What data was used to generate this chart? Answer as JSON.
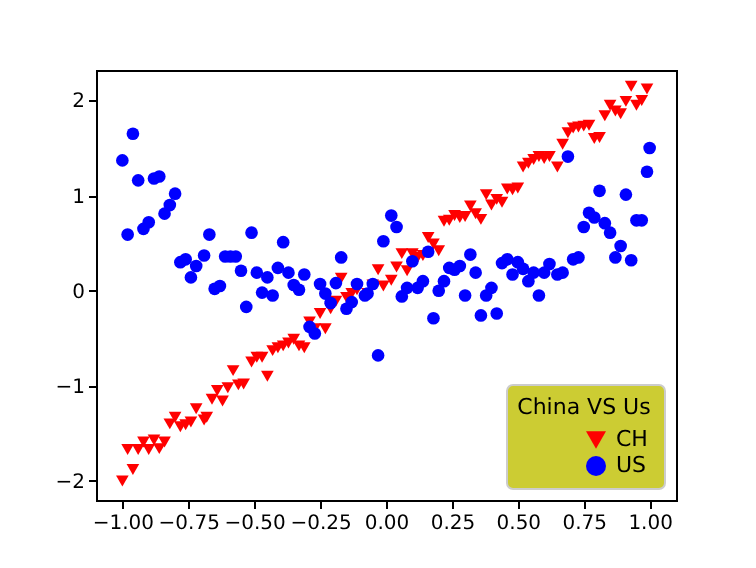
{
  "chart_data": {
    "type": "scatter",
    "legend_title": "China VS Us",
    "legend": "bottom right",
    "grid": false,
    "xlim": [
      -1.1,
      1.1
    ],
    "ylim": [
      -2.2,
      2.32
    ],
    "xticks": [
      {
        "value": -1,
        "label": "−1.00"
      },
      {
        "value": -0.75,
        "label": "−0.75"
      },
      {
        "value": -0.5,
        "label": "−0.50"
      },
      {
        "value": -0.25,
        "label": "−0.25"
      },
      {
        "value": 0,
        "label": "0.00"
      },
      {
        "value": 0.25,
        "label": "0.25"
      },
      {
        "value": 0.5,
        "label": "0.50"
      },
      {
        "value": 0.75,
        "label": "0.75"
      },
      {
        "value": 1,
        "label": "1.00"
      }
    ],
    "yticks": [
      {
        "value": -2,
        "label": "−2"
      },
      {
        "value": -1,
        "label": "−1"
      },
      0,
      1,
      2
    ],
    "series": [
      {
        "name": "CH",
        "color": "#ff0000",
        "marker": "triangle",
        "x": [
          -1.0,
          -0.96,
          -0.98,
          -0.94,
          -0.92,
          -0.9,
          -0.88,
          -0.86,
          -0.84,
          -0.82,
          -0.8,
          -0.78,
          -0.76,
          -0.74,
          -0.72,
          -0.69,
          -0.68,
          -0.66,
          -0.64,
          -0.62,
          -0.6,
          -0.58,
          -0.56,
          -0.54,
          -0.51,
          -0.49,
          -0.47,
          -0.45,
          -0.43,
          -0.41,
          -0.39,
          -0.37,
          -0.35,
          -0.33,
          -0.31,
          -0.29,
          -0.27,
          -0.25,
          -0.23,
          -0.21,
          -0.19,
          -0.17,
          -0.15,
          -0.13,
          -0.11,
          -0.07,
          -0.05,
          -0.03,
          -0.01,
          0.02,
          0.04,
          0.06,
          0.08,
          0.1,
          0.12,
          0.14,
          0.16,
          0.18,
          0.2,
          0.22,
          0.24,
          0.26,
          0.28,
          0.3,
          0.32,
          0.34,
          0.36,
          0.38,
          0.4,
          0.42,
          0.44,
          0.46,
          0.48,
          0.5,
          0.52,
          0.54,
          0.56,
          0.58,
          0.6,
          0.62,
          0.65,
          0.67,
          0.69,
          0.71,
          0.73,
          0.75,
          0.77,
          0.79,
          0.81,
          0.83,
          0.85,
          0.87,
          0.89,
          0.91,
          0.93,
          0.95,
          0.97,
          0.99
        ],
        "values": [
          -2.0,
          -1.88,
          -1.67,
          -1.67,
          -1.59,
          -1.67,
          -1.57,
          -1.66,
          -1.59,
          -1.4,
          -1.33,
          -1.43,
          -1.41,
          -1.38,
          -1.24,
          -1.36,
          -1.33,
          -1.14,
          -1.05,
          -1.16,
          -1.02,
          -0.84,
          -0.99,
          -0.98,
          -0.75,
          -0.7,
          -0.7,
          -0.9,
          -0.63,
          -0.6,
          -0.58,
          -0.55,
          -0.51,
          -0.58,
          -0.6,
          -0.33,
          -0.4,
          -0.24,
          -0.4,
          -0.19,
          -0.11,
          0.13,
          -0.07,
          -0.03,
          0.01,
          -0.03,
          0.06,
          0.22,
          0.05,
          0.11,
          0.25,
          0.39,
          0.21,
          0.39,
          0.35,
          0.37,
          0.56,
          0.49,
          0.42,
          0.73,
          0.74,
          0.79,
          0.77,
          0.78,
          0.89,
          0.81,
          0.75,
          1.01,
          0.9,
          0.96,
          0.93,
          1.07,
          1.06,
          1.08,
          1.3,
          1.34,
          1.38,
          1.41,
          1.39,
          1.41,
          1.3,
          1.54,
          1.66,
          1.71,
          1.72,
          1.73,
          1.74,
          1.6,
          1.61,
          1.84,
          1.95,
          1.89,
          1.86,
          1.99,
          2.15,
          1.95,
          2.0,
          2.12
        ]
      },
      {
        "name": "US",
        "color": "#0000ff",
        "marker": "circle",
        "x": [
          -1.0,
          -0.96,
          -0.98,
          -0.94,
          -0.92,
          -0.9,
          -0.88,
          -0.86,
          -0.84,
          -0.82,
          -0.8,
          -0.78,
          -0.76,
          -0.74,
          -0.72,
          -0.69,
          -0.67,
          -0.65,
          -0.63,
          -0.61,
          -0.59,
          -0.57,
          -0.55,
          -0.53,
          -0.51,
          -0.49,
          -0.47,
          -0.45,
          -0.43,
          -0.41,
          -0.39,
          -0.37,
          -0.35,
          -0.33,
          -0.31,
          -0.29,
          -0.27,
          -0.25,
          -0.23,
          -0.21,
          -0.19,
          -0.17,
          -0.15,
          -0.13,
          -0.11,
          -0.08,
          -0.07,
          -0.05,
          -0.03,
          -0.01,
          0.02,
          0.04,
          0.06,
          0.08,
          0.1,
          0.12,
          0.14,
          0.16,
          0.18,
          0.2,
          0.22,
          0.24,
          0.26,
          0.28,
          0.3,
          0.32,
          0.34,
          0.36,
          0.38,
          0.4,
          0.42,
          0.44,
          0.46,
          0.48,
          0.5,
          0.52,
          0.54,
          0.56,
          0.58,
          0.6,
          0.62,
          0.65,
          0.67,
          0.69,
          0.71,
          0.73,
          0.75,
          0.77,
          0.79,
          0.81,
          0.83,
          0.85,
          0.87,
          0.89,
          0.91,
          0.93,
          0.95,
          0.97,
          0.99,
          1.0
        ],
        "values": [
          1.37,
          1.65,
          0.59,
          1.16,
          0.65,
          0.72,
          1.18,
          1.2,
          0.81,
          0.9,
          1.02,
          0.3,
          0.33,
          0.14,
          0.26,
          0.37,
          0.59,
          0.02,
          0.05,
          0.36,
          0.36,
          0.36,
          0.21,
          -0.17,
          0.61,
          0.19,
          -0.02,
          0.14,
          -0.05,
          0.24,
          0.51,
          0.19,
          0.06,
          0.01,
          0.17,
          -0.38,
          -0.45,
          0.07,
          -0.03,
          -0.13,
          0.08,
          0.35,
          -0.19,
          -0.12,
          0.07,
          -0.05,
          -0.03,
          0.07,
          -0.68,
          0.52,
          0.79,
          0.67,
          -0.06,
          0.03,
          0.31,
          0.03,
          0.1,
          0.41,
          -0.29,
          0.0,
          0.1,
          0.24,
          0.22,
          0.26,
          -0.05,
          0.38,
          0.19,
          -0.26,
          -0.05,
          0.03,
          -0.24,
          0.29,
          0.33,
          0.17,
          0.3,
          0.23,
          0.1,
          0.19,
          -0.05,
          0.19,
          0.28,
          0.17,
          0.19,
          1.41,
          0.33,
          0.35,
          0.67,
          0.82,
          0.77,
          1.05,
          0.71,
          0.61,
          0.35,
          0.47,
          1.01,
          0.32,
          0.74,
          0.74,
          1.25,
          1.5
        ]
      }
    ]
  }
}
